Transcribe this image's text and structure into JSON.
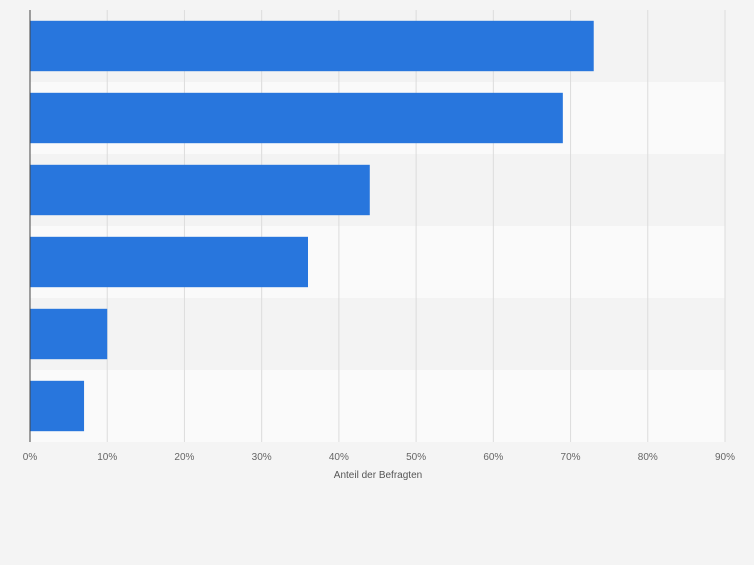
{
  "chart_data": {
    "type": "bar",
    "orientation": "horizontal",
    "categories": [
      "",
      "",
      "",
      "",
      "",
      ""
    ],
    "values": [
      73,
      69,
      44,
      36,
      10,
      7
    ],
    "xlabel": "Anteil der Befragten",
    "ylabel": "",
    "xlim": [
      0,
      90
    ],
    "x_ticks": [
      "0%",
      "10%",
      "20%",
      "30%",
      "40%",
      "50%",
      "60%",
      "70%",
      "80%",
      "90%"
    ],
    "grid": true,
    "bar_color": "#2876dd",
    "band_colors": [
      "#f3f3f3",
      "#fafafa"
    ],
    "background": "#f4f4f4"
  }
}
